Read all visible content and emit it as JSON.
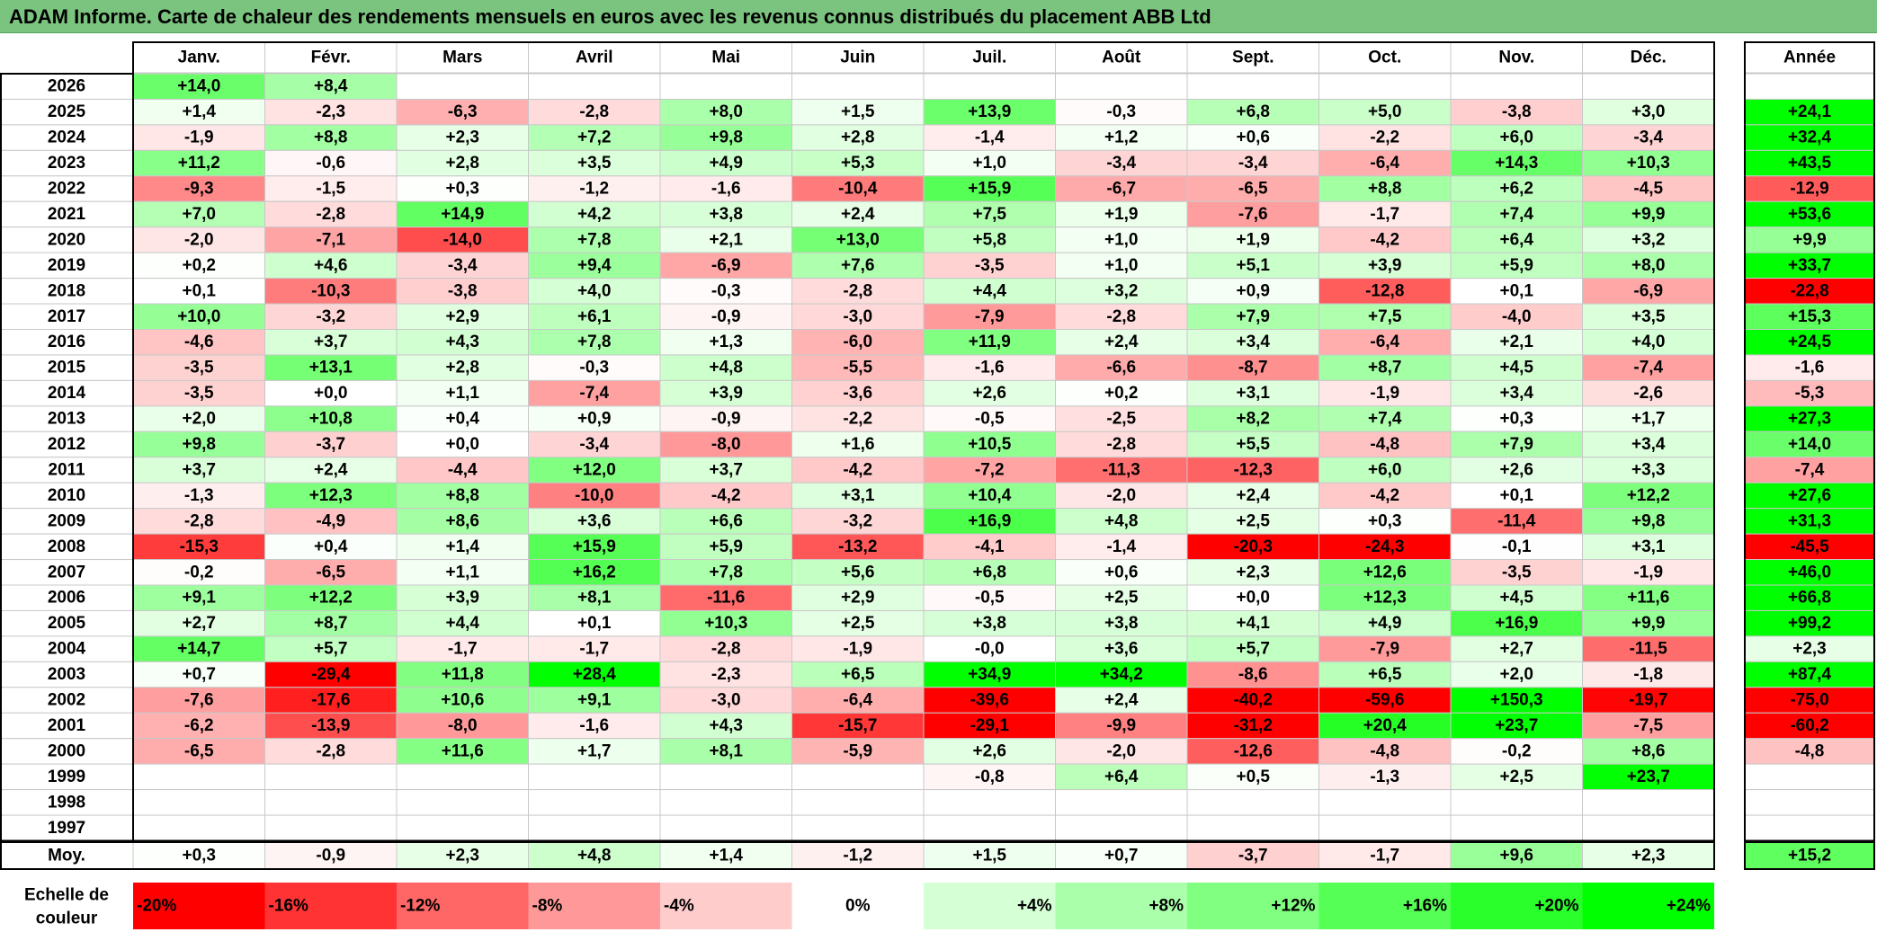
{
  "title": "ADAM Informe. Carte de chaleur des rendements mensuels en euros avec les revenus connus distribués du placement ABB Ltd",
  "chart_data": {
    "type": "heatmap",
    "title": "ADAM Informe. Carte de chaleur des rendements mensuels en euros avec les revenus connus distribués du placement ABB Ltd",
    "columns": [
      "Janv.",
      "Févr.",
      "Mars",
      "Avril",
      "Mai",
      "Juin",
      "Juil.",
      "Août",
      "Sept.",
      "Oct.",
      "Nov.",
      "Déc."
    ],
    "annual_header": "Année",
    "rows": [
      {
        "year": "2026",
        "values": [
          "+14,0",
          "+8,4",
          "",
          "",
          "",
          "",
          "",
          "",
          "",
          "",
          "",
          ""
        ],
        "annual": ""
      },
      {
        "year": "2025",
        "values": [
          "+1,4",
          "-2,3",
          "-6,3",
          "-2,8",
          "+8,0",
          "+1,5",
          "+13,9",
          "-0,3",
          "+6,8",
          "+5,0",
          "-3,8",
          "+3,0"
        ],
        "annual": "+24,1"
      },
      {
        "year": "2024",
        "values": [
          "-1,9",
          "+8,8",
          "+2,3",
          "+7,2",
          "+9,8",
          "+2,8",
          "-1,4",
          "+1,2",
          "+0,6",
          "-2,2",
          "+6,0",
          "-3,4"
        ],
        "annual": "+32,4"
      },
      {
        "year": "2023",
        "values": [
          "+11,2",
          "-0,6",
          "+2,8",
          "+3,5",
          "+4,9",
          "+5,3",
          "+1,0",
          "-3,4",
          "-3,4",
          "-6,4",
          "+14,3",
          "+10,3"
        ],
        "annual": "+43,5"
      },
      {
        "year": "2022",
        "values": [
          "-9,3",
          "-1,5",
          "+0,3",
          "-1,2",
          "-1,6",
          "-10,4",
          "+15,9",
          "-6,7",
          "-6,5",
          "+8,8",
          "+6,2",
          "-4,5"
        ],
        "annual": "-12,9"
      },
      {
        "year": "2021",
        "values": [
          "+7,0",
          "-2,8",
          "+14,9",
          "+4,2",
          "+3,8",
          "+2,4",
          "+7,5",
          "+1,9",
          "-7,6",
          "-1,7",
          "+7,4",
          "+9,9"
        ],
        "annual": "+53,6"
      },
      {
        "year": "2020",
        "values": [
          "-2,0",
          "-7,1",
          "-14,0",
          "+7,8",
          "+2,1",
          "+13,0",
          "+5,8",
          "+1,0",
          "+1,9",
          "-4,2",
          "+6,4",
          "+3,2"
        ],
        "annual": "+9,9"
      },
      {
        "year": "2019",
        "values": [
          "+0,2",
          "+4,6",
          "-3,4",
          "+9,4",
          "-6,9",
          "+7,6",
          "-3,5",
          "+1,0",
          "+5,1",
          "+3,9",
          "+5,9",
          "+8,0"
        ],
        "annual": "+33,7"
      },
      {
        "year": "2018",
        "values": [
          "+0,1",
          "-10,3",
          "-3,8",
          "+4,0",
          "-0,3",
          "-2,8",
          "+4,4",
          "+3,2",
          "+0,9",
          "-12,8",
          "+0,1",
          "-6,9"
        ],
        "annual": "-22,8"
      },
      {
        "year": "2017",
        "values": [
          "+10,0",
          "-3,2",
          "+2,9",
          "+6,1",
          "-0,9",
          "-3,0",
          "-7,9",
          "-2,8",
          "+7,9",
          "+7,5",
          "-4,0",
          "+3,5"
        ],
        "annual": "+15,3"
      },
      {
        "year": "2016",
        "values": [
          "-4,6",
          "+3,7",
          "+4,3",
          "+7,8",
          "+1,3",
          "-6,0",
          "+11,9",
          "+2,4",
          "+3,4",
          "-6,4",
          "+2,1",
          "+4,0"
        ],
        "annual": "+24,5"
      },
      {
        "year": "2015",
        "values": [
          "-3,5",
          "+13,1",
          "+2,8",
          "-0,3",
          "+4,8",
          "-5,5",
          "-1,6",
          "-6,6",
          "-8,7",
          "+8,7",
          "+4,5",
          "-7,4"
        ],
        "annual": "-1,6"
      },
      {
        "year": "2014",
        "values": [
          "-3,5",
          "+0,0",
          "+1,1",
          "-7,4",
          "+3,9",
          "-3,6",
          "+2,6",
          "+0,2",
          "+3,1",
          "-1,9",
          "+3,4",
          "-2,6"
        ],
        "annual": "-5,3"
      },
      {
        "year": "2013",
        "values": [
          "+2,0",
          "+10,8",
          "+0,4",
          "+0,9",
          "-0,9",
          "-2,2",
          "-0,5",
          "-2,5",
          "+8,2",
          "+7,4",
          "+0,3",
          "+1,7"
        ],
        "annual": "+27,3"
      },
      {
        "year": "2012",
        "values": [
          "+9,8",
          "-3,7",
          "+0,0",
          "-3,4",
          "-8,0",
          "+1,6",
          "+10,5",
          "-2,8",
          "+5,5",
          "-4,8",
          "+7,9",
          "+3,4"
        ],
        "annual": "+14,0"
      },
      {
        "year": "2011",
        "values": [
          "+3,7",
          "+2,4",
          "-4,4",
          "+12,0",
          "+3,7",
          "-4,2",
          "-7,2",
          "-11,3",
          "-12,3",
          "+6,0",
          "+2,6",
          "+3,3"
        ],
        "annual": "-7,4"
      },
      {
        "year": "2010",
        "values": [
          "-1,3",
          "+12,3",
          "+8,8",
          "-10,0",
          "-4,2",
          "+3,1",
          "+10,4",
          "-2,0",
          "+2,4",
          "-4,2",
          "+0,1",
          "+12,2"
        ],
        "annual": "+27,6"
      },
      {
        "year": "2009",
        "values": [
          "-2,8",
          "-4,9",
          "+8,6",
          "+3,6",
          "+6,6",
          "-3,2",
          "+16,9",
          "+4,8",
          "+2,5",
          "+0,3",
          "-11,4",
          "+9,8"
        ],
        "annual": "+31,3"
      },
      {
        "year": "2008",
        "values": [
          "-15,3",
          "+0,4",
          "+1,4",
          "+15,9",
          "+5,9",
          "-13,2",
          "-4,1",
          "-1,4",
          "-20,3",
          "-24,3",
          "-0,1",
          "+3,1"
        ],
        "annual": "-45,5"
      },
      {
        "year": "2007",
        "values": [
          "-0,2",
          "-6,5",
          "+1,1",
          "+16,2",
          "+7,8",
          "+5,6",
          "+6,8",
          "+0,6",
          "+2,3",
          "+12,6",
          "-3,5",
          "-1,9"
        ],
        "annual": "+46,0"
      },
      {
        "year": "2006",
        "values": [
          "+9,1",
          "+12,2",
          "+3,9",
          "+8,1",
          "-11,6",
          "+2,9",
          "-0,5",
          "+2,5",
          "+0,0",
          "+12,3",
          "+4,5",
          "+11,6"
        ],
        "annual": "+66,8"
      },
      {
        "year": "2005",
        "values": [
          "+2,7",
          "+8,7",
          "+4,4",
          "+0,1",
          "+10,3",
          "+2,5",
          "+3,8",
          "+3,8",
          "+4,1",
          "+4,9",
          "+16,9",
          "+9,9"
        ],
        "annual": "+99,2"
      },
      {
        "year": "2004",
        "values": [
          "+14,7",
          "+5,7",
          "-1,7",
          "-1,7",
          "-2,8",
          "-1,9",
          "-0,0",
          "+3,6",
          "+5,7",
          "-7,9",
          "+2,7",
          "-11,5"
        ],
        "annual": "+2,3"
      },
      {
        "year": "2003",
        "values": [
          "+0,7",
          "-29,4",
          "+11,8",
          "+28,4",
          "-2,3",
          "+6,5",
          "+34,9",
          "+34,2",
          "-8,6",
          "+6,5",
          "+2,0",
          "-1,8"
        ],
        "annual": "+87,4"
      },
      {
        "year": "2002",
        "values": [
          "-7,6",
          "-17,6",
          "+10,6",
          "+9,1",
          "-3,0",
          "-6,4",
          "-39,6",
          "+2,4",
          "-40,2",
          "-59,6",
          "+150,3",
          "-19,7"
        ],
        "annual": "-75,0"
      },
      {
        "year": "2001",
        "values": [
          "-6,2",
          "-13,9",
          "-8,0",
          "-1,6",
          "+4,3",
          "-15,7",
          "-29,1",
          "-9,9",
          "-31,2",
          "+20,4",
          "+23,7",
          "-7,5"
        ],
        "annual": "-60,2"
      },
      {
        "year": "2000",
        "values": [
          "-6,5",
          "-2,8",
          "+11,6",
          "+1,7",
          "+8,1",
          "-5,9",
          "+2,6",
          "-2,0",
          "-12,6",
          "-4,8",
          "-0,2",
          "+8,6"
        ],
        "annual": "-4,8"
      },
      {
        "year": "1999",
        "values": [
          "",
          "",
          "",
          "",
          "",
          "",
          "-0,8",
          "+6,4",
          "+0,5",
          "-1,3",
          "+2,5",
          "+23,7"
        ],
        "annual": ""
      },
      {
        "year": "1998",
        "values": [
          "",
          "",
          "",
          "",
          "",
          "",
          "",
          "",
          "",
          "",
          "",
          ""
        ],
        "annual": ""
      },
      {
        "year": "1997",
        "values": [
          "",
          "",
          "",
          "",
          "",
          "",
          "",
          "",
          "",
          "",
          "",
          ""
        ],
        "annual": ""
      }
    ],
    "average": {
      "label": "Moy.",
      "values": [
        "+0,3",
        "-0,9",
        "+2,3",
        "+4,8",
        "+1,4",
        "-1,2",
        "+1,5",
        "+0,7",
        "-3,7",
        "-1,7",
        "+9,6",
        "+2,3"
      ],
      "annual": "+15,2"
    },
    "scale": {
      "label_line1": "Echelle de",
      "label_line2": "couleur",
      "stops": [
        {
          "label": "-20%",
          "value": -20
        },
        {
          "label": "-16%",
          "value": -16
        },
        {
          "label": "-12%",
          "value": -12
        },
        {
          "label": "-8%",
          "value": -8
        },
        {
          "label": "-4%",
          "value": -4
        },
        {
          "label": "0%",
          "value": 0
        },
        {
          "label": "+4%",
          "value": 4
        },
        {
          "label": "+8%",
          "value": 8
        },
        {
          "label": "+12%",
          "value": 12
        },
        {
          "label": "+16%",
          "value": 16
        },
        {
          "label": "+20%",
          "value": 20
        },
        {
          "label": "+24%",
          "value": 24
        }
      ]
    },
    "colors": {
      "negative_max": "#ff0000",
      "positive_max": "#00ff00",
      "neutral": "#ffffff",
      "title_bar": "#7bc47f",
      "border": "#c8c8c8"
    }
  }
}
